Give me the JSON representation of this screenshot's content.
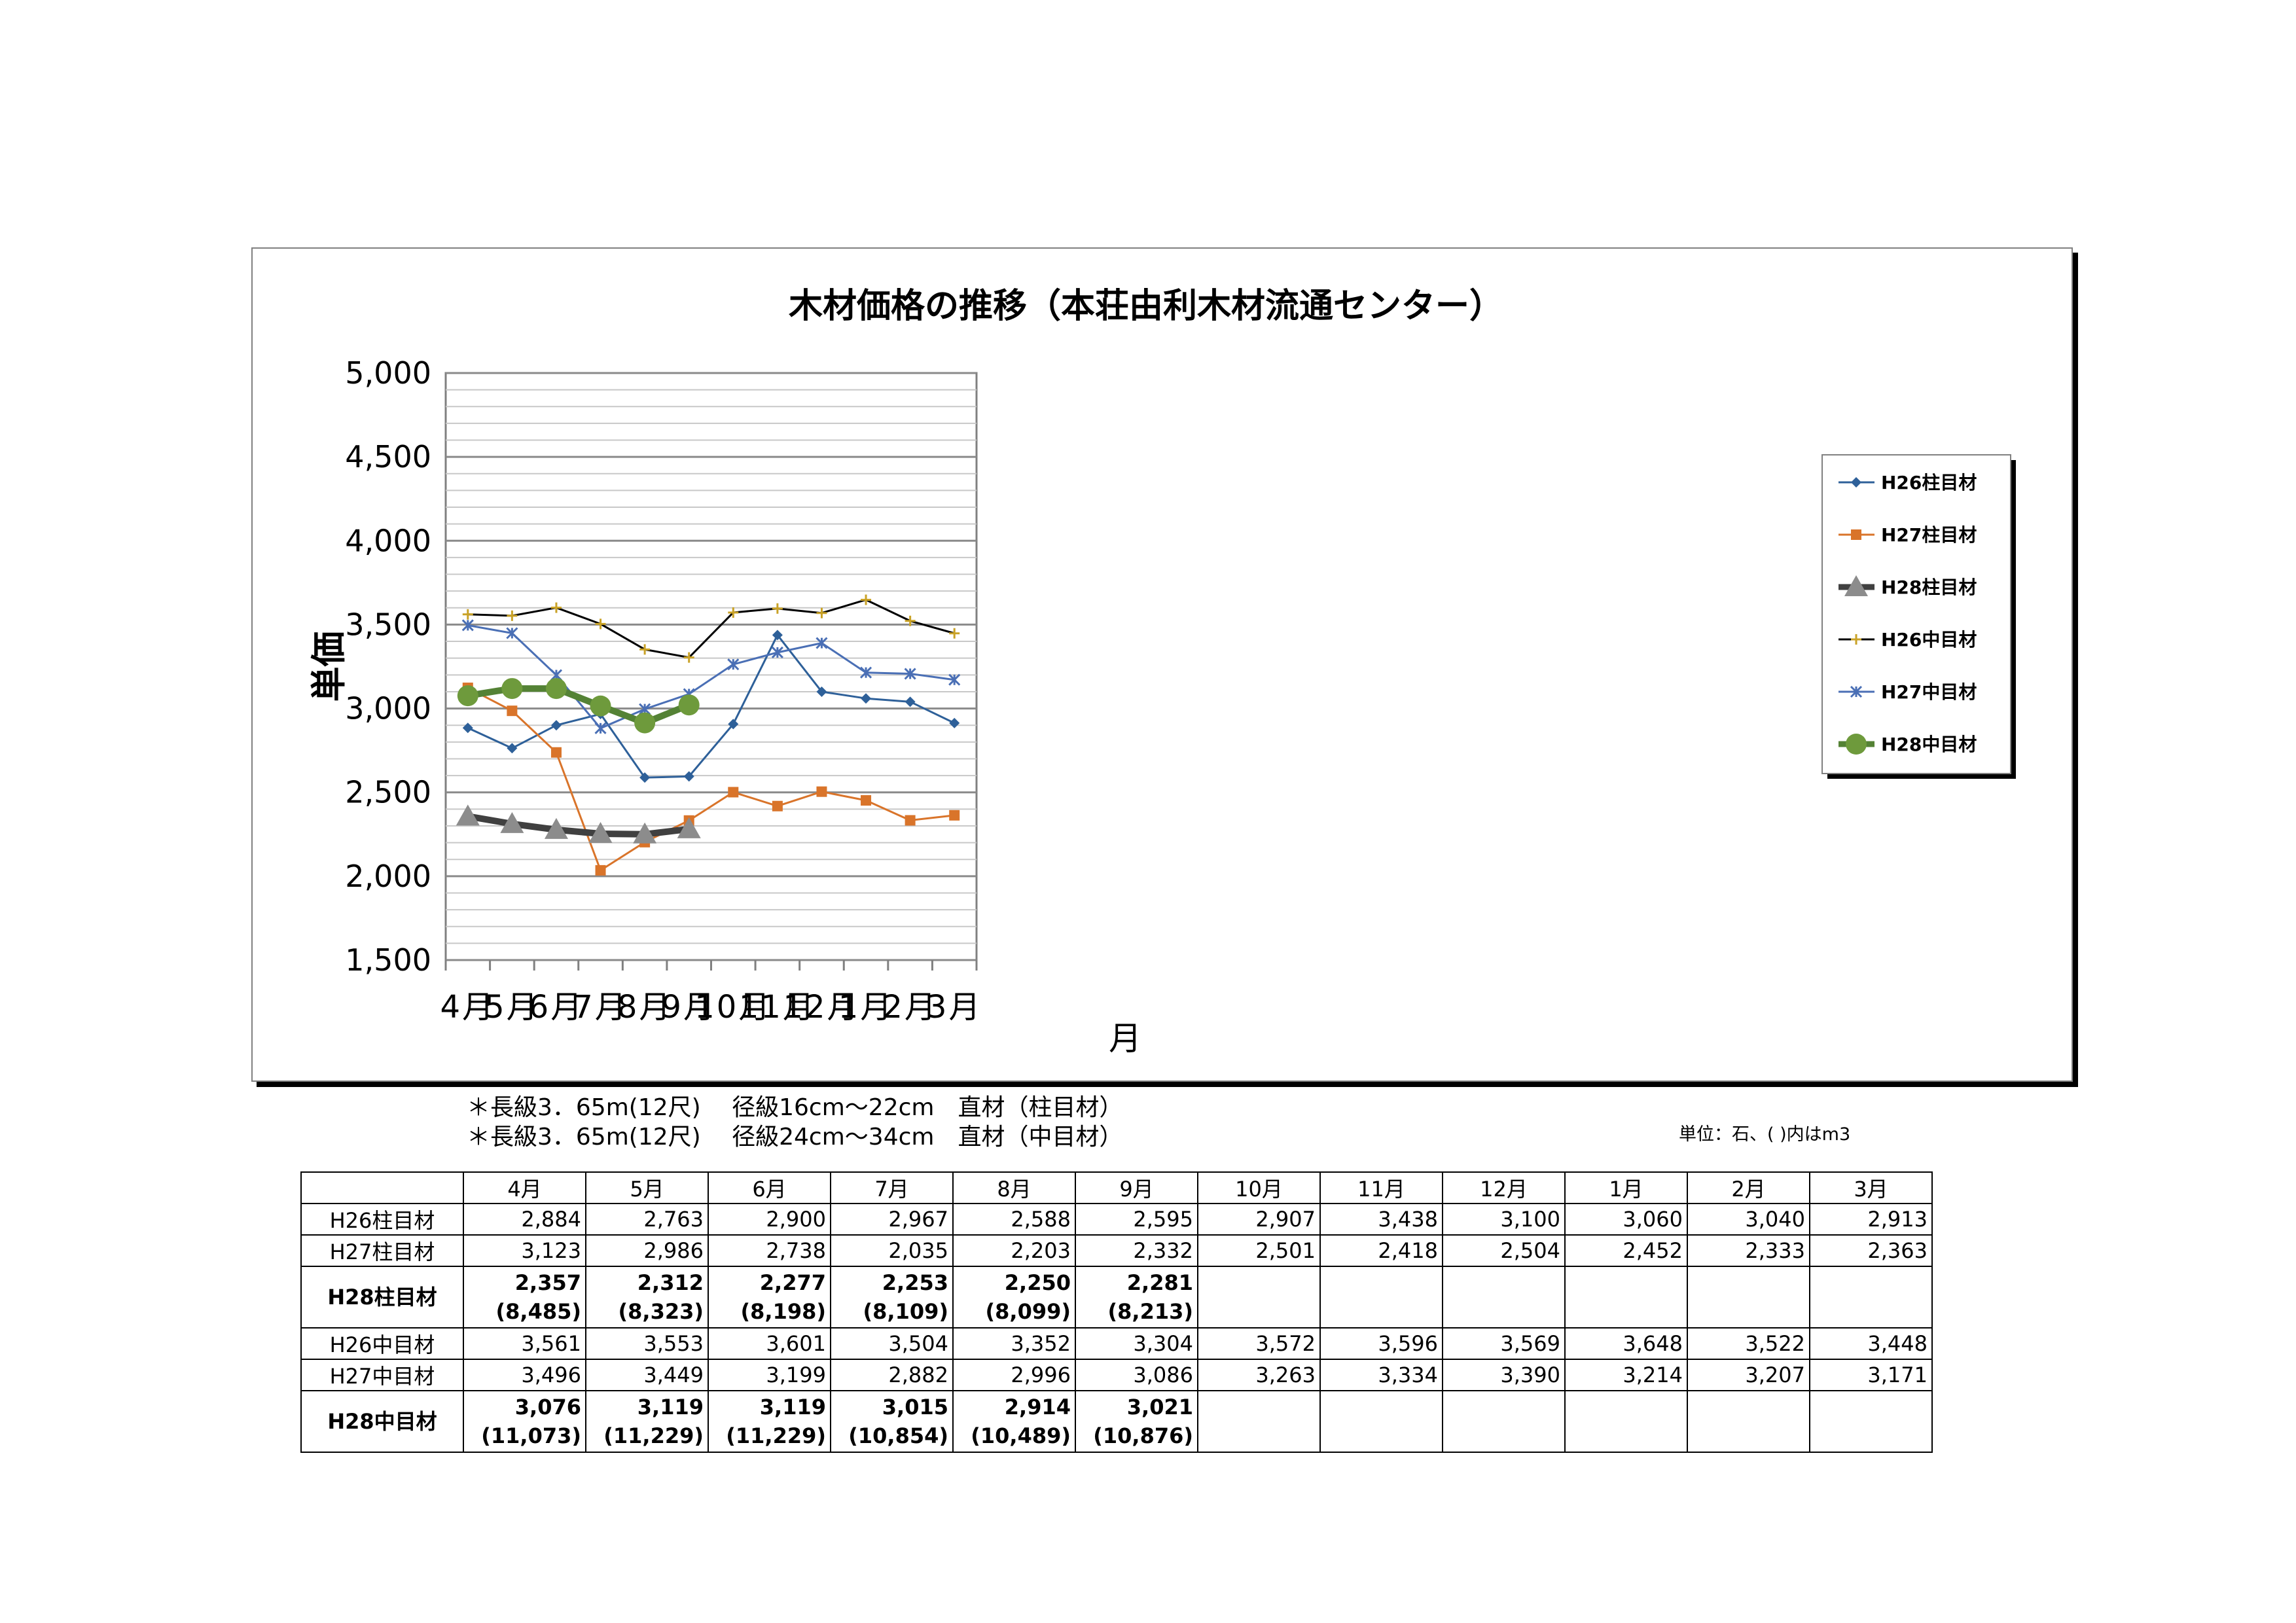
{
  "chart_data": {
    "type": "line",
    "title": "木材価格の推移（本荘由利木材流通センター）",
    "xlabel": "月",
    "ylabel": "単価",
    "categories": [
      "4月",
      "5月",
      "6月",
      "7月",
      "8月",
      "9月",
      "10月",
      "11月",
      "12月",
      "1月",
      "2月",
      "3月"
    ],
    "ylim": [
      1500,
      5000
    ],
    "ytick_step": 500,
    "ytick_labels": [
      "1,500",
      "2,000",
      "2,500",
      "3,000",
      "3,500",
      "4,000",
      "4,500",
      "5,000"
    ],
    "grid": true,
    "legend_position": "right",
    "series": [
      {
        "name": "H26柱目材",
        "values": [
          2884,
          2763,
          2900,
          2967,
          2588,
          2595,
          2907,
          3438,
          3100,
          3060,
          3040,
          2913
        ],
        "color": "#2E6099",
        "marker": "diamond",
        "width": 3
      },
      {
        "name": "H27柱目材",
        "values": [
          3123,
          2986,
          2738,
          2035,
          2203,
          2332,
          2501,
          2418,
          2504,
          2452,
          2333,
          2363
        ],
        "color": "#D9742A",
        "marker": "square",
        "width": 3
      },
      {
        "name": "H28柱目材",
        "values": [
          2357,
          2312,
          2277,
          2253,
          2250,
          2281,
          null,
          null,
          null,
          null,
          null,
          null
        ],
        "color": "#404040",
        "marker": "triangle",
        "marker_color": "#8C8C8C",
        "width": 10
      },
      {
        "name": "H26中目材",
        "values": [
          3561,
          3553,
          3601,
          3504,
          3352,
          3304,
          3572,
          3596,
          3569,
          3648,
          3522,
          3448
        ],
        "color": "#000000",
        "marker": "plus",
        "marker_color": "#C9A227",
        "width": 3
      },
      {
        "name": "H27中目材",
        "values": [
          3496,
          3449,
          3199,
          2882,
          2996,
          3086,
          3263,
          3334,
          3390,
          3214,
          3207,
          3171
        ],
        "color": "#4A6FB5",
        "marker": "star",
        "width": 3
      },
      {
        "name": "H28中目材",
        "values": [
          3076,
          3119,
          3119,
          3015,
          2914,
          3021,
          null,
          null,
          null,
          null,
          null,
          null
        ],
        "color": "#548235",
        "marker": "circle",
        "marker_color": "#6E9A3C",
        "width": 10
      }
    ]
  },
  "notes": [
    "＊長級3．65m(12尺)　 径級16cm～22cm　直材（柱目材）",
    "＊長級3．65m(12尺)　 径級24cm～34cm　直材（中目材）"
  ],
  "unit_note": "単位：石、(  )内はm3",
  "table": {
    "columns": [
      "4月",
      "5月",
      "6月",
      "7月",
      "8月",
      "9月",
      "10月",
      "11月",
      "12月",
      "1月",
      "2月",
      "3月"
    ],
    "rows": [
      {
        "label": "H26柱目材",
        "bold": false,
        "cells": [
          "2,884",
          "2,763",
          "2,900",
          "2,967",
          "2,588",
          "2,595",
          "2,907",
          "3,438",
          "3,100",
          "3,060",
          "3,040",
          "2,913"
        ]
      },
      {
        "label": "H27柱目材",
        "bold": false,
        "cells": [
          "3,123",
          "2,986",
          "2,738",
          "2,035",
          "2,203",
          "2,332",
          "2,501",
          "2,418",
          "2,504",
          "2,452",
          "2,333",
          "2,363"
        ]
      },
      {
        "label": "H28柱目材",
        "bold": true,
        "cells": [
          "2,357",
          "2,312",
          "2,277",
          "2,253",
          "2,250",
          "2,281",
          "",
          "",
          "",
          "",
          "",
          ""
        ],
        "sub": [
          "(8,485)",
          "(8,323)",
          "(8,198)",
          "(8,109)",
          "(8,099)",
          "(8,213)",
          "",
          "",
          "",
          "",
          "",
          ""
        ]
      },
      {
        "label": "H26中目材",
        "bold": false,
        "cells": [
          "3,561",
          "3,553",
          "3,601",
          "3,504",
          "3,352",
          "3,304",
          "3,572",
          "3,596",
          "3,569",
          "3,648",
          "3,522",
          "3,448"
        ]
      },
      {
        "label": "H27中目材",
        "bold": false,
        "cells": [
          "3,496",
          "3,449",
          "3,199",
          "2,882",
          "2,996",
          "3,086",
          "3,263",
          "3,334",
          "3,390",
          "3,214",
          "3,207",
          "3,171"
        ]
      },
      {
        "label": "H28中目材",
        "bold": true,
        "cells": [
          "3,076",
          "3,119",
          "3,119",
          "3,015",
          "2,914",
          "3,021",
          "",
          "",
          "",
          "",
          "",
          ""
        ],
        "sub": [
          "(11,073)",
          "(11,229)",
          "(11,229)",
          "(10,854)",
          "(10,489)",
          "(10,876)",
          "",
          "",
          "",
          "",
          "",
          ""
        ]
      }
    ]
  }
}
